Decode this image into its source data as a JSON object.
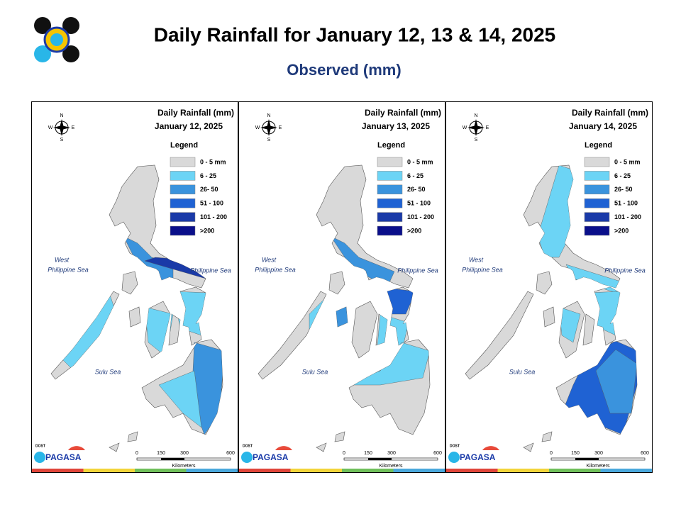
{
  "header": {
    "title": "Daily Rainfall for January 12, 13 & 14, 2025",
    "subtitle": "Observed (mm)"
  },
  "panels": [
    {
      "heading": "Daily Rainfall (mm)",
      "date": "January 12, 2025"
    },
    {
      "heading": "Daily Rainfall (mm)",
      "date": "January 13, 2025"
    },
    {
      "heading": "Daily Rainfall (mm)",
      "date": "January 14, 2025"
    }
  ],
  "legend": {
    "title": "Legend",
    "items": [
      {
        "label": "0 - 5 mm",
        "color": "#d9d9d9"
      },
      {
        "label": "6 - 25",
        "color": "#6cd4f5"
      },
      {
        "label": "26- 50",
        "color": "#3a93dd"
      },
      {
        "label": "51 - 100",
        "color": "#1f62d3"
      },
      {
        "label": "101 - 200",
        "color": "#1a3aa8"
      },
      {
        "label": ">200",
        "color": "#0a0f8a"
      }
    ]
  },
  "seas": {
    "west": "West",
    "west2": "Philippine Sea",
    "east": "Philippine Sea",
    "sulu": "Sulu Sea"
  },
  "compass": {
    "n": "N",
    "s": "S",
    "e": "E",
    "w": "W"
  },
  "scale": {
    "ticks": [
      "0",
      "150",
      "300",
      "600"
    ],
    "unit": "Kilometers"
  },
  "logo": {
    "small": "DOST",
    "name": "PAGASA"
  }
}
